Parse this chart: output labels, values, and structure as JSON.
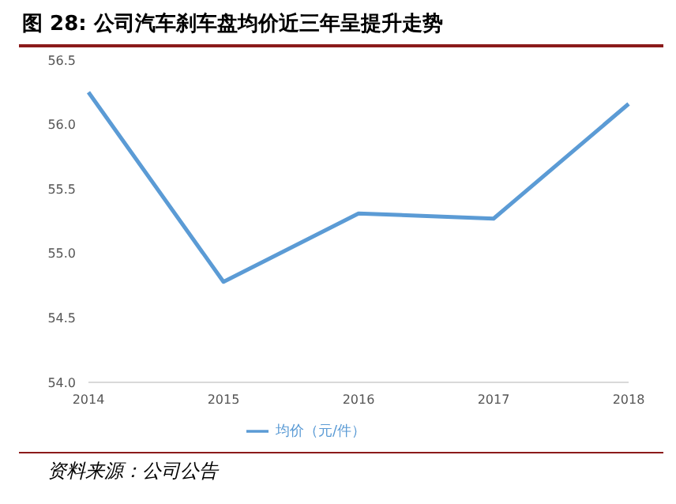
{
  "chart_data": {
    "type": "line",
    "title": "图 28:  公司汽车刹车盘均价近三年呈提升走势",
    "categories": [
      "2014",
      "2015",
      "2016",
      "2017",
      "2018"
    ],
    "series": [
      {
        "name": "均价（元/件）",
        "color": "#5b9bd5",
        "values": [
          56.25,
          54.78,
          55.31,
          55.27,
          56.16
        ]
      }
    ],
    "ylim": [
      54.0,
      56.5
    ],
    "yticks": [
      {
        "value": 54.0,
        "label": "54.0"
      },
      {
        "value": 54.5,
        "label": "54.5"
      },
      {
        "value": 55.0,
        "label": "55.0"
      },
      {
        "value": 55.5,
        "label": "55.5"
      },
      {
        "value": 56.0,
        "label": "56.0"
      },
      {
        "value": 56.5,
        "label": "56.5"
      }
    ],
    "grid": false,
    "legend": "bottom",
    "marker": "none",
    "line_style": "solid",
    "annotations": [
      "资料来源：公司公告"
    ]
  }
}
